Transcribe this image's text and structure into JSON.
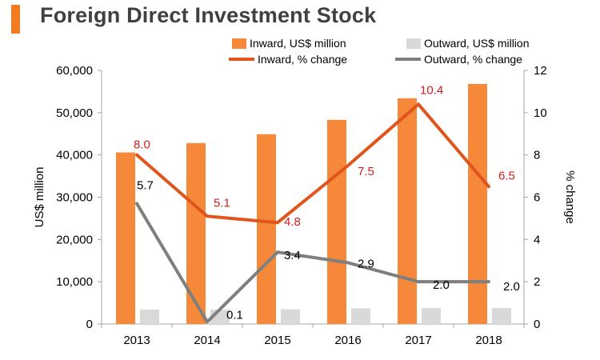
{
  "title": "Foreign Direct Investment Stock",
  "chart_data": {
    "type": "bar",
    "categories": [
      "2013",
      "2014",
      "2015",
      "2016",
      "2017",
      "2018"
    ],
    "series": [
      {
        "name": "Inward, US$ million",
        "kind": "bar",
        "axis": "left",
        "color": "#f6883a",
        "values": [
          40600,
          42800,
          44900,
          48300,
          53400,
          56800
        ]
      },
      {
        "name": "Outward, US$ million",
        "kind": "bar",
        "axis": "left",
        "color": "#d9d9d9",
        "values": [
          3400,
          3400,
          3500,
          3700,
          3800,
          3800
        ]
      },
      {
        "name": "Inward, % change",
        "kind": "line",
        "axis": "right",
        "color": "#e0551c",
        "values": [
          8.0,
          5.1,
          4.8,
          7.5,
          10.4,
          6.5
        ],
        "labels": [
          "8.0",
          "5.1",
          "4.8",
          "7.5",
          "10.4",
          "6.5"
        ]
      },
      {
        "name": "Outward, % change",
        "kind": "line",
        "axis": "right",
        "color": "#7f7f7f",
        "values": [
          5.7,
          0.1,
          3.4,
          2.9,
          2.0,
          2.0
        ],
        "labels": [
          "5.7",
          "0.1",
          "3.4",
          "2.9",
          "2.0",
          "2.0"
        ]
      }
    ],
    "ylabel": "US$ million",
    "y2label": "% change",
    "ylim": [
      0,
      60000
    ],
    "y2lim": [
      0,
      12
    ],
    "yticks": [
      "0",
      "10,000",
      "20,000",
      "30,000",
      "40,000",
      "50,000",
      "60,000"
    ],
    "y2ticks": [
      "0",
      "2",
      "4",
      "6",
      "8",
      "10",
      "12"
    ],
    "legend": "top",
    "grid": false
  }
}
